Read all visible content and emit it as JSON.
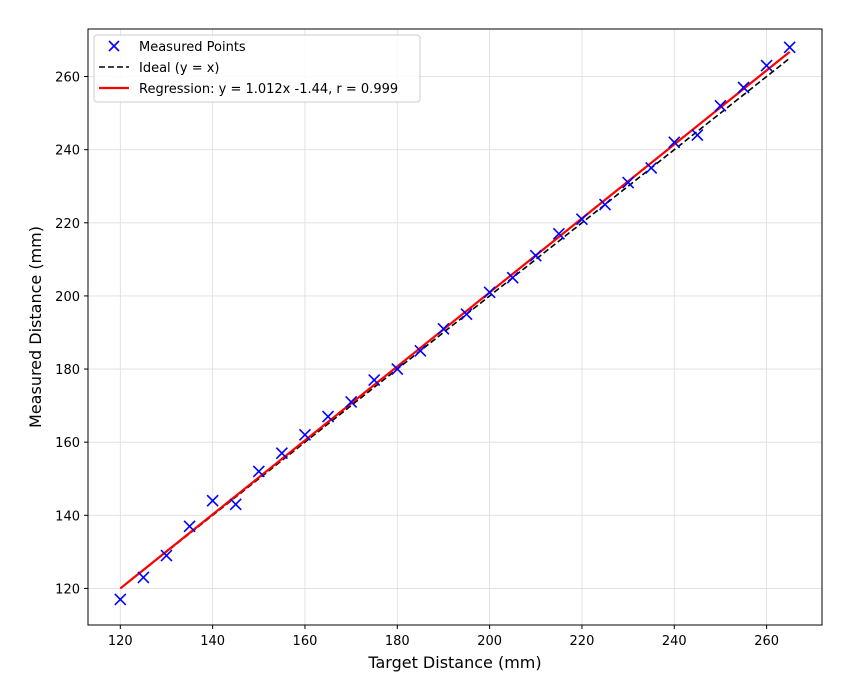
{
  "chart_data": {
    "type": "scatter",
    "xlabel": "Target Distance (mm)",
    "ylabel": "Measured Distance (mm)",
    "xlim": [
      113,
      272
    ],
    "ylim": [
      110,
      273
    ],
    "xticks": [
      120,
      140,
      160,
      180,
      200,
      220,
      240,
      260
    ],
    "yticks": [
      120,
      140,
      160,
      180,
      200,
      220,
      240,
      260
    ],
    "grid": true,
    "legend_position": "top-left",
    "series": [
      {
        "name": "Measured Points",
        "kind": "scatter",
        "marker": "x",
        "color": "#0000ff",
        "points": [
          [
            120,
            117
          ],
          [
            125,
            123
          ],
          [
            130,
            129
          ],
          [
            135,
            137
          ],
          [
            140,
            144
          ],
          [
            145,
            143
          ],
          [
            150,
            152
          ],
          [
            155,
            157
          ],
          [
            160,
            162
          ],
          [
            165,
            167
          ],
          [
            170,
            171
          ],
          [
            175,
            177
          ],
          [
            180,
            180
          ],
          [
            185,
            185
          ],
          [
            190,
            191
          ],
          [
            195,
            195
          ],
          [
            200,
            201
          ],
          [
            205,
            205
          ],
          [
            210,
            211
          ],
          [
            215,
            217
          ],
          [
            220,
            221
          ],
          [
            225,
            225
          ],
          [
            230,
            231
          ],
          [
            235,
            235
          ],
          [
            240,
            242
          ],
          [
            245,
            244
          ],
          [
            250,
            252
          ],
          [
            255,
            257
          ],
          [
            260,
            263
          ],
          [
            265,
            268
          ]
        ]
      },
      {
        "name": "Ideal (y = x)",
        "kind": "line",
        "style": "dashed",
        "color": "#000000",
        "points": [
          [
            120,
            120
          ],
          [
            265,
            265
          ]
        ]
      },
      {
        "name": "Regression: y = 1.012x -1.44, r = 0.999",
        "kind": "line",
        "style": "solid",
        "color": "#ff0000",
        "points": [
          [
            120,
            120.0
          ],
          [
            265,
            266.74
          ]
        ]
      }
    ]
  }
}
